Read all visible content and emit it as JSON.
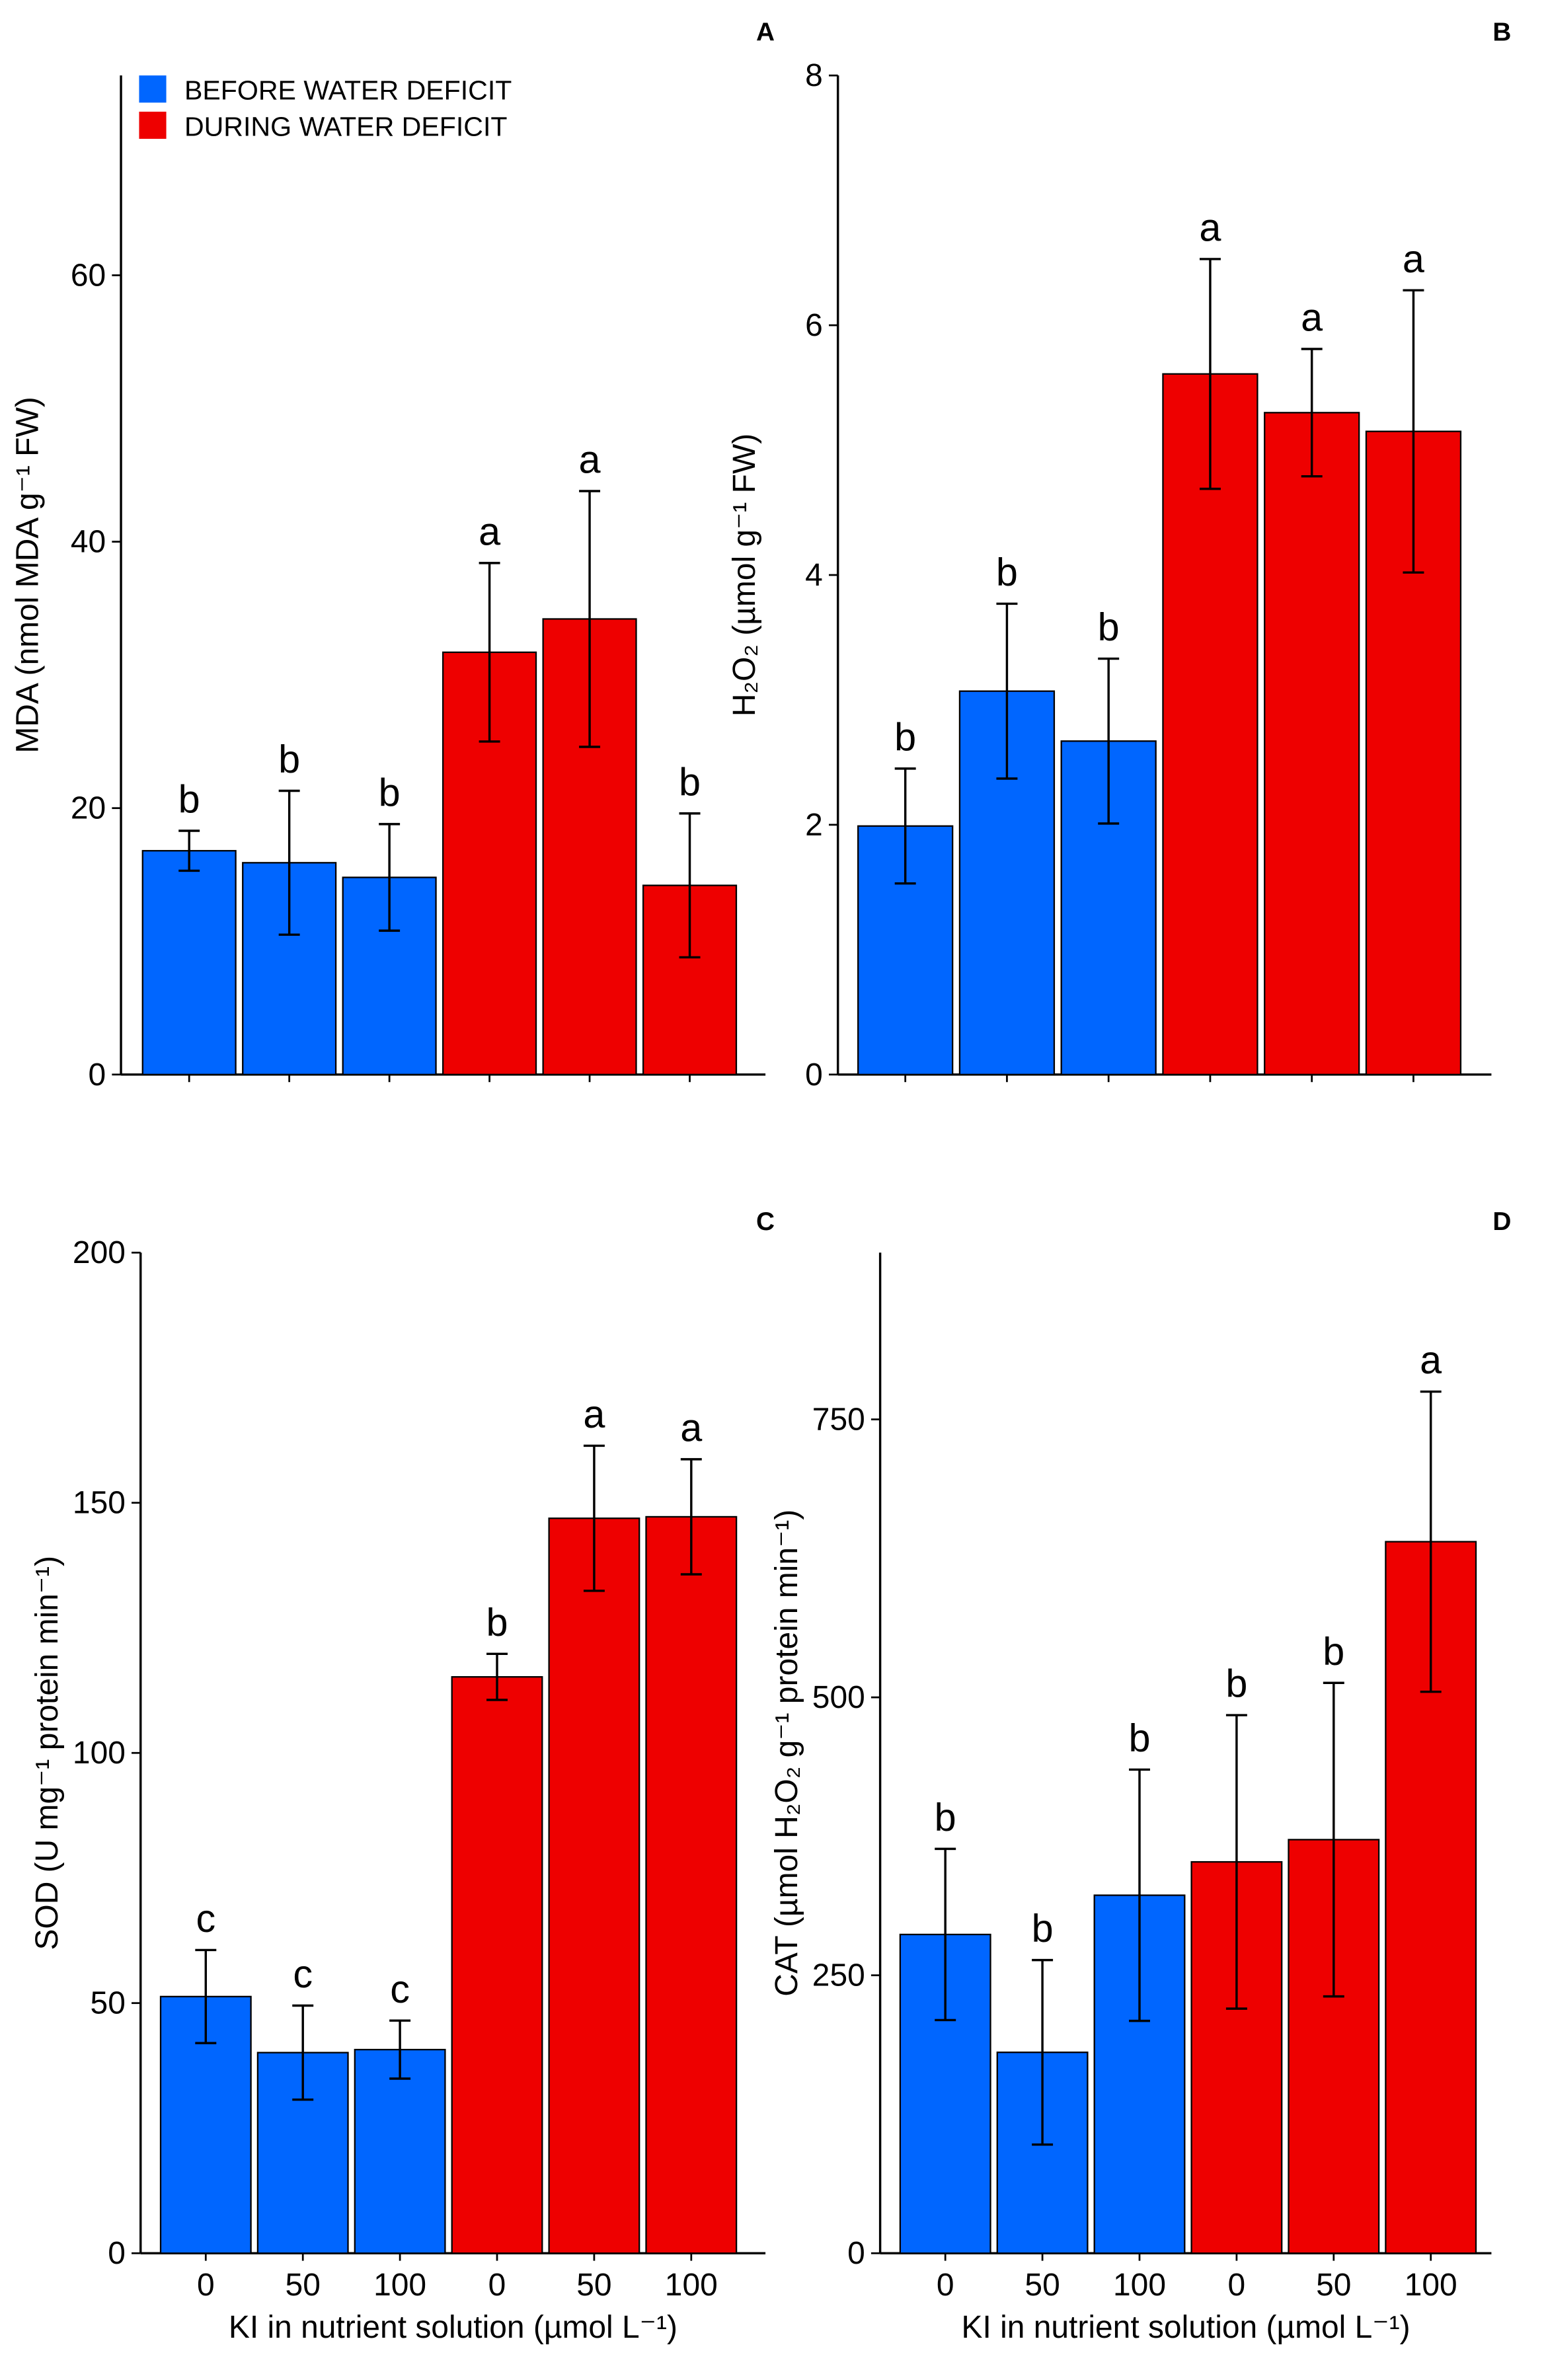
{
  "chart_data": [
    {
      "type": "bar",
      "panel": "A",
      "ylabel": "MDA (nmol MDA g⁻¹ FW)",
      "categories": [
        null,
        null,
        null,
        null,
        null,
        null
      ],
      "series": [
        {
          "name": "BEFORE WATER DEFICIT",
          "color": "#0066ff",
          "values": [
            16.8,
            15.9,
            14.8,
            null,
            null,
            null
          ],
          "errors": [
            1.5,
            5.4,
            4.0,
            null,
            null,
            null
          ],
          "letters": [
            "b",
            "b",
            "b",
            null,
            null,
            null
          ]
        },
        {
          "name": "DURING WATER DEFICIT",
          "color": "#ee0000",
          "values": [
            null,
            null,
            null,
            31.7,
            34.2,
            14.2
          ],
          "errors": [
            null,
            null,
            null,
            6.7,
            9.6,
            5.4
          ],
          "letters": [
            null,
            null,
            null,
            "a",
            "a",
            "b"
          ]
        }
      ],
      "ylim": [
        0,
        75
      ],
      "yticks": [
        0,
        20,
        40,
        60
      ],
      "legend": "top-left"
    },
    {
      "type": "bar",
      "panel": "B",
      "ylabel": "H₂O₂ (µmol g⁻¹ FW)",
      "categories": [
        null,
        null,
        null,
        null,
        null,
        null
      ],
      "series": [
        {
          "color": "#0066ff",
          "values": [
            1.99,
            3.07,
            2.67,
            null,
            null,
            null
          ],
          "errors": [
            0.46,
            0.7,
            0.66,
            null,
            null,
            null
          ],
          "letters": [
            "b",
            "b",
            "b",
            null,
            null,
            null
          ]
        },
        {
          "color": "#ee0000",
          "values": [
            null,
            null,
            null,
            5.61,
            5.3,
            5.15
          ],
          "errors": [
            null,
            null,
            null,
            0.92,
            0.51,
            1.13
          ],
          "letters": [
            null,
            null,
            null,
            "a",
            "a",
            "a"
          ]
        }
      ],
      "ylim": [
        0,
        8
      ],
      "yticks": [
        0,
        2,
        4,
        6,
        8
      ]
    },
    {
      "type": "bar",
      "panel": "C",
      "ylabel": "SOD (U mg⁻¹ protein min⁻¹)",
      "xlabel": "KI in nutrient solution (µmol L⁻¹)",
      "categories": [
        "0",
        "50",
        "100",
        "0",
        "50",
        "100"
      ],
      "series": [
        {
          "color": "#0066ff",
          "values": [
            51.3,
            40.1,
            40.7,
            null,
            null,
            null
          ],
          "errors": [
            9.3,
            9.4,
            5.8,
            null,
            null,
            null
          ],
          "letters": [
            "c",
            "c",
            "c",
            null,
            null,
            null
          ]
        },
        {
          "color": "#ee0000",
          "values": [
            null,
            null,
            null,
            115.2,
            146.9,
            147.2
          ],
          "errors": [
            null,
            null,
            null,
            4.6,
            14.5,
            11.5
          ],
          "letters": [
            null,
            null,
            null,
            "b",
            "a",
            "a"
          ]
        }
      ],
      "ylim": [
        0,
        200
      ],
      "yticks": [
        0,
        50,
        100,
        150,
        200
      ]
    },
    {
      "type": "bar",
      "panel": "D",
      "ylabel": "CAT (µmol H₂O₂ g⁻¹ protein min⁻¹)",
      "xlabel": "KI in nutrient solution (µmol L⁻¹)",
      "categories": [
        "0",
        "50",
        "100",
        "0",
        "50",
        "100"
      ],
      "series": [
        {
          "color": "#0066ff",
          "values": [
            286.7,
            180.7,
            322,
            null,
            null,
            null
          ],
          "errors": [
            77,
            83,
            113,
            null,
            null,
            null
          ],
          "letters": [
            "b",
            "b",
            "b",
            null,
            null,
            null
          ]
        },
        {
          "color": "#ee0000",
          "values": [
            null,
            null,
            null,
            352,
            372,
            640
          ],
          "errors": [
            null,
            null,
            null,
            132,
            141,
            135
          ],
          "letters": [
            null,
            null,
            null,
            "b",
            "b",
            "a"
          ]
        }
      ],
      "ylim": [
        0,
        900
      ],
      "yticks": [
        0,
        250,
        500,
        750
      ]
    }
  ]
}
